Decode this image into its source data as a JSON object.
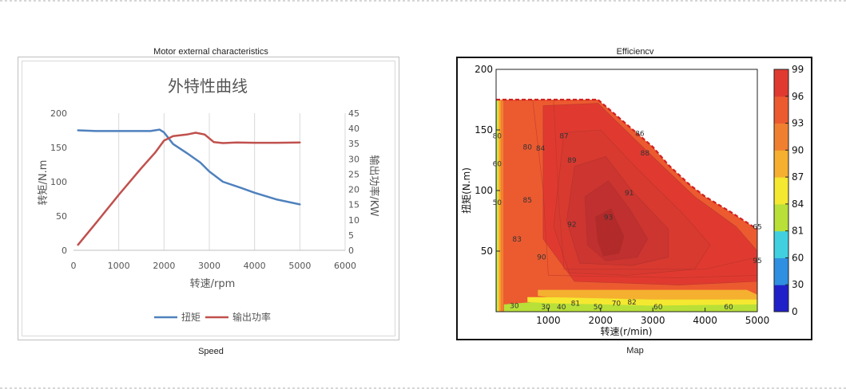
{
  "captions": {
    "left_top": "Motor external characteristics",
    "left_bottom": "Speed",
    "right_top": "Efficiencv",
    "right_bottom": "Map"
  },
  "chart_data": [
    {
      "type": "line",
      "title": "外特性曲线",
      "xlabel": "转速/rpm",
      "ylabel": "转矩/N.m",
      "y2label": "输出功率/KW",
      "xlim": [
        0,
        6000
      ],
      "ylim": [
        0,
        200
      ],
      "y2lim": [
        0,
        45
      ],
      "xticks": [
        0,
        1000,
        2000,
        3000,
        4000,
        5000,
        6000
      ],
      "yticks": [
        0,
        50,
        100,
        150,
        200
      ],
      "y2ticks": [
        0,
        5,
        10,
        15,
        20,
        25,
        30,
        35,
        40,
        45
      ],
      "grid": "vertical",
      "legend": "bottom",
      "series": [
        {
          "name": "扭矩",
          "axis": "left",
          "color": "#4f81bd",
          "x": [
            100,
            500,
            1000,
            1500,
            1700,
            1900,
            2000,
            2200,
            2500,
            2800,
            3000,
            3300,
            3700,
            4000,
            4500,
            5000
          ],
          "y": [
            175,
            174,
            174,
            174,
            174,
            176,
            172,
            155,
            142,
            128,
            115,
            100,
            91,
            84,
            74,
            67
          ]
        },
        {
          "name": "输出功率",
          "axis": "right",
          "color": "#c0504d",
          "x": [
            100,
            500,
            1000,
            1500,
            1800,
            2000,
            2200,
            2500,
            2700,
            2900,
            3100,
            3300,
            3600,
            4000,
            4500,
            5000
          ],
          "y": [
            1.8,
            9,
            18.2,
            27,
            32,
            36,
            37.5,
            38,
            38.6,
            38,
            35.5,
            35.2,
            35.4,
            35.3,
            35.3,
            35.4
          ]
        }
      ]
    },
    {
      "type": "heatmap",
      "xlabel": "转速(r/min)",
      "ylabel": "扭矩(N.m)",
      "xlim": [
        0,
        5000
      ],
      "ylim": [
        0,
        200
      ],
      "xticks": [
        1000,
        2000,
        3000,
        4000,
        5000
      ],
      "yticks": [
        50,
        100,
        150,
        200
      ],
      "colorbar": {
        "ticks": [
          0,
          30,
          60,
          81,
          84,
          87,
          90,
          93,
          96,
          99
        ],
        "colors": [
          "#2020c8",
          "#2f8fe0",
          "#40d0e0",
          "#b8e038",
          "#f5e830",
          "#f5b030",
          "#f08030",
          "#ec5a30",
          "#e03a30",
          "#b82a2a"
        ]
      },
      "boundary": {
        "x": [
          0,
          1950,
          3000,
          3300,
          3700,
          4000,
          4500,
          5000
        ],
        "y": [
          175,
          175,
          136,
          121,
          105,
          95,
          82,
          68
        ]
      },
      "contour_labels": [
        {
          "text": "87",
          "x": 1300,
          "y": 145
        },
        {
          "text": "84",
          "x": 850,
          "y": 135
        },
        {
          "text": "80",
          "x": 600,
          "y": 136
        },
        {
          "text": "89",
          "x": 1450,
          "y": 125
        },
        {
          "text": "85",
          "x": 600,
          "y": 92
        },
        {
          "text": "83",
          "x": 400,
          "y": 60
        },
        {
          "text": "90",
          "x": 870,
          "y": 45
        },
        {
          "text": "92",
          "x": 1450,
          "y": 72
        },
        {
          "text": "93",
          "x": 2150,
          "y": 78
        },
        {
          "text": "91",
          "x": 2550,
          "y": 98
        },
        {
          "text": "88",
          "x": 2850,
          "y": 131
        },
        {
          "text": "86",
          "x": 2750,
          "y": 147
        },
        {
          "text": "65",
          "x": 5000,
          "y": 70
        },
        {
          "text": "95",
          "x": 5000,
          "y": 42
        },
        {
          "text": "80",
          "x": 20,
          "y": 145
        },
        {
          "text": "60",
          "x": 20,
          "y": 122
        },
        {
          "text": "50",
          "x": 20,
          "y": 90
        },
        {
          "text": "30",
          "x": 350,
          "y": 5
        },
        {
          "text": "30",
          "x": 950,
          "y": 4
        },
        {
          "text": "40",
          "x": 1250,
          "y": 4
        },
        {
          "text": "81",
          "x": 1520,
          "y": 7
        },
        {
          "text": "50",
          "x": 1950,
          "y": 4
        },
        {
          "text": "70",
          "x": 2300,
          "y": 7
        },
        {
          "text": "82",
          "x": 2600,
          "y": 8
        },
        {
          "text": "60",
          "x": 3100,
          "y": 4
        },
        {
          "text": "60",
          "x": 4450,
          "y": 4
        }
      ]
    }
  ]
}
